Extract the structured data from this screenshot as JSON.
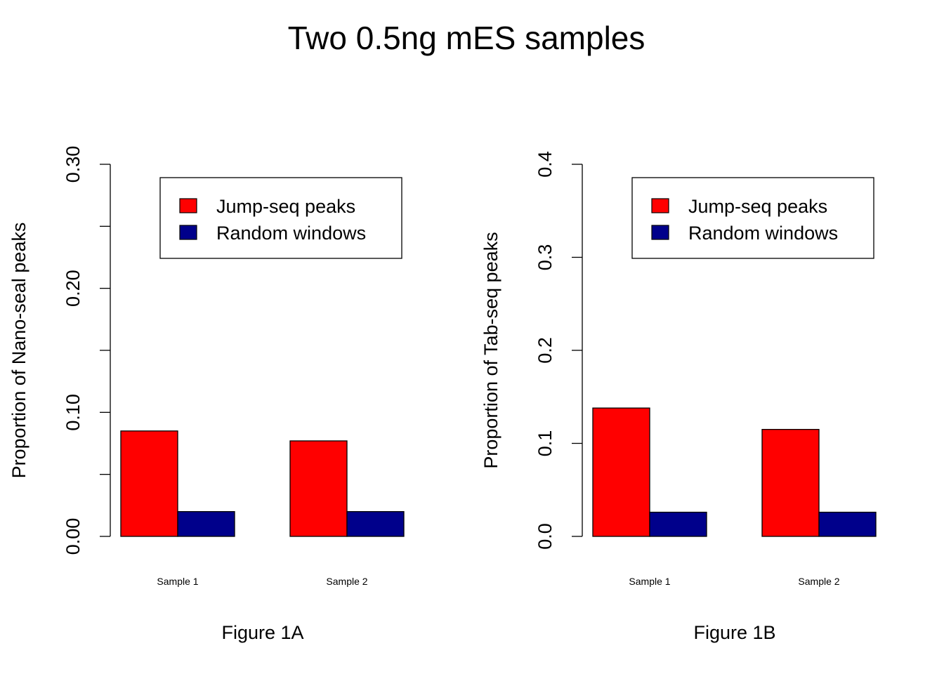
{
  "figure": {
    "title": "Two 0.5ng mES samples"
  },
  "colors": {
    "series_jump": "#ff0000",
    "series_random": "#00008b",
    "axis": "#000000",
    "background": "#ffffff"
  },
  "chart_data": [
    {
      "type": "bar",
      "title": "",
      "xlabel": "Figure 1A",
      "ylabel": "Proportion of Nano-seal peaks",
      "categories": [
        "Sample 1",
        "Sample 2"
      ],
      "ylim": [
        0,
        0.3
      ],
      "yticks": [
        0.0,
        0.05,
        0.1,
        0.15,
        0.2,
        0.25,
        0.3
      ],
      "ytick_labels": [
        "0.00",
        "",
        "0.10",
        "",
        "0.20",
        "",
        "0.30"
      ],
      "grid": false,
      "legend": "top-right",
      "series": [
        {
          "name": "Jump-seq peaks",
          "values": [
            0.085,
            0.077
          ]
        },
        {
          "name": "Random windows",
          "values": [
            0.02,
            0.02
          ]
        }
      ]
    },
    {
      "type": "bar",
      "title": "",
      "xlabel": "Figure 1B",
      "ylabel": "Proportion of Tab-seq peaks",
      "categories": [
        "Sample 1",
        "Sample 2"
      ],
      "ylim": [
        0,
        0.4
      ],
      "yticks": [
        0.0,
        0.1,
        0.2,
        0.3,
        0.4
      ],
      "ytick_labels": [
        "0.0",
        "0.1",
        "0.2",
        "0.3",
        "0.4"
      ],
      "grid": false,
      "legend": "top-right",
      "series": [
        {
          "name": "Jump-seq peaks",
          "values": [
            0.138,
            0.115
          ]
        },
        {
          "name": "Random windows",
          "values": [
            0.026,
            0.026
          ]
        }
      ]
    }
  ]
}
